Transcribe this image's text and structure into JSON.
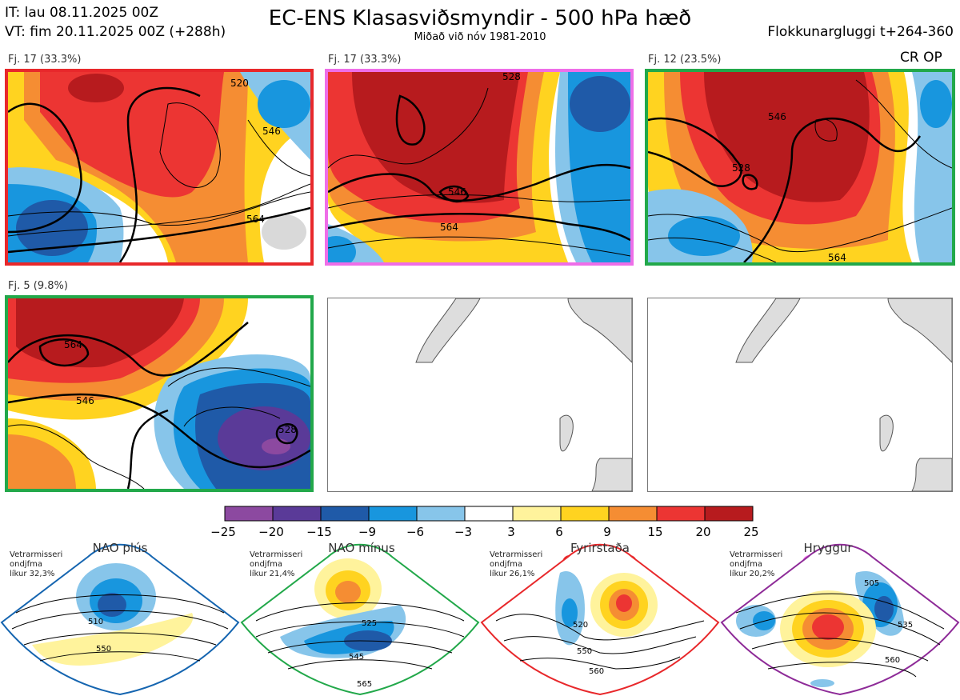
{
  "header": {
    "it_line": "IT: lau 08.11.2025 00Z",
    "vt_line": "VT: fim 20.11.2025 00Z  (+288h)",
    "title": "EC-ENS Klasasviðsmyndir - 500 hPa hæð",
    "subtitle": "Miðað við nóv 1981-2010",
    "window": "Flokkunargluggi t+264-360",
    "op_label": "CR OP"
  },
  "panels": [
    {
      "label": "Fj. 17 (33.3%)",
      "border": "#e8282b",
      "contours": [
        "520",
        "546",
        "564"
      ]
    },
    {
      "label": "Fj. 17 (33.3%)",
      "border": "#ee6ee8",
      "contours": [
        "546",
        "528",
        "564"
      ]
    },
    {
      "label": "Fj. 12 (23.5%)",
      "border": "#22a84a",
      "contours": [
        "546",
        "528",
        "564"
      ]
    },
    {
      "label": "Fj. 5 (9.8%)",
      "border": "#22a84a",
      "contours": [
        "564",
        "546",
        "528"
      ]
    }
  ],
  "colorbar": {
    "ticks": [
      "−25",
      "−20",
      "−15",
      "−9",
      "−6",
      "−3",
      "3",
      "6",
      "9",
      "15",
      "20",
      "25"
    ],
    "colors": [
      "#8c49a0",
      "#5a3a98",
      "#1f5aa8",
      "#1896de",
      "#87c5ea",
      "#ffffff",
      "#fff39c",
      "#ffd320",
      "#f58d33",
      "#ec3533",
      "#b71b1e"
    ]
  },
  "regimes": [
    {
      "name": "NAO plús",
      "text": [
        "Vetrarmisseri",
        "ondjfma",
        "líkur 32,3%"
      ],
      "color": "#1565b0",
      "contours": [
        "510",
        "550"
      ]
    },
    {
      "name": "NAO mínus",
      "text": [
        "Vetrarmisseri",
        "ondjfma",
        "líkur 21,4%"
      ],
      "color": "#22a84a",
      "contours": [
        "525",
        "545",
        "565"
      ]
    },
    {
      "name": "Fyrirstaða",
      "text": [
        "Vetrarmisseri",
        "ondjfma",
        "líkur 26,1%"
      ],
      "color": "#e8282b",
      "contours": [
        "520",
        "550",
        "560"
      ]
    },
    {
      "name": "Hryggur",
      "text": [
        "Vetrarmisseri",
        "ondjfma",
        "líkur 20,2%"
      ],
      "color": "#8e2b98",
      "contours": [
        "505",
        "535",
        "560"
      ]
    }
  ]
}
